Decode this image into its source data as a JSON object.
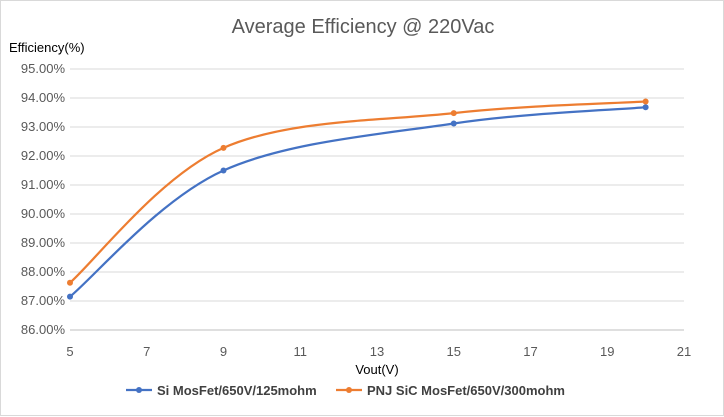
{
  "chart_data": {
    "type": "line",
    "title": "Average Efficiency @ 220Vac",
    "xlabel": "Vout(V)",
    "ylabel": "Efficiency(%)",
    "xlim": [
      5,
      21
    ],
    "ylim": [
      86.0,
      95.0
    ],
    "xticks": [
      5,
      7,
      9,
      11,
      13,
      15,
      17,
      19,
      21
    ],
    "yticks": [
      86,
      87,
      88,
      89,
      90,
      91,
      92,
      93,
      94,
      95
    ],
    "ytick_labels": [
      "86.00%",
      "87.00%",
      "88.00%",
      "89.00%",
      "90.00%",
      "91.00%",
      "92.00%",
      "93.00%",
      "94.00%",
      "95.00%"
    ],
    "xtick_labels": [
      "5",
      "7",
      "9",
      "11",
      "13",
      "15",
      "17",
      "19",
      "21"
    ],
    "grid": "horizontal",
    "legend_position": "bottom",
    "series": [
      {
        "name": "Si MosFet/650V/125mohm",
        "color": "#4472c4",
        "x": [
          5,
          9,
          15,
          20
        ],
        "y": [
          87.15,
          91.5,
          93.12,
          93.68
        ]
      },
      {
        "name": "PNJ SiC MosFet/650V/300mohm",
        "color": "#ed7d31",
        "x": [
          5,
          9,
          15,
          20
        ],
        "y": [
          87.63,
          92.28,
          93.48,
          93.88
        ]
      }
    ]
  }
}
